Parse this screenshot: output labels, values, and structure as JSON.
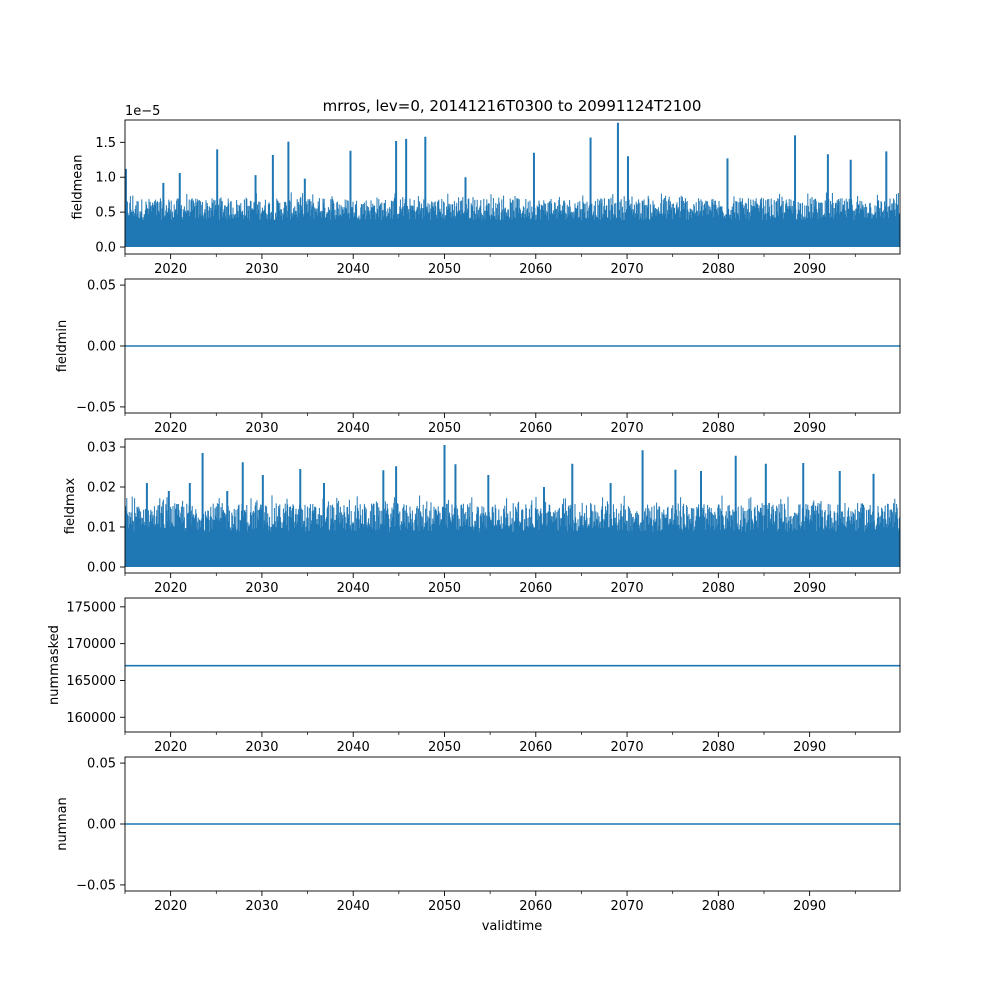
{
  "title": "mrros, lev=0, 20141216T0300 to 20991124T2100",
  "xlabel": "validtime",
  "colors": {
    "series": "#1f77b4",
    "axes": "#000000"
  },
  "chart_data": [
    {
      "type": "line",
      "ylabel": "fieldmean",
      "offset_label": "1e−5",
      "xlim": [
        2015,
        2099.9
      ],
      "ylim": [
        -0.1,
        1.82
      ],
      "x_ticks": [
        2020,
        2030,
        2040,
        2050,
        2060,
        2070,
        2080,
        2090
      ],
      "y_ticks": [
        0.0,
        0.5,
        1.0,
        1.5
      ],
      "y_tick_labels": [
        "0.0",
        "0.5",
        "1.0",
        "1.5"
      ],
      "series": [
        {
          "style": "dense-noise",
          "base_range": [
            0.0,
            0.7
          ],
          "spikes": [
            [
              2015.1,
              1.12
            ],
            [
              2019.2,
              0.92
            ],
            [
              2021.0,
              1.06
            ],
            [
              2025.1,
              1.4
            ],
            [
              2029.3,
              1.03
            ],
            [
              2031.2,
              1.32
            ],
            [
              2032.9,
              1.51
            ],
            [
              2034.7,
              0.98
            ],
            [
              2039.7,
              1.38
            ],
            [
              2044.7,
              1.52
            ],
            [
              2045.8,
              1.55
            ],
            [
              2047.9,
              1.58
            ],
            [
              2052.3,
              1.0
            ],
            [
              2059.8,
              1.35
            ],
            [
              2066.0,
              1.57
            ],
            [
              2069.0,
              1.78
            ],
            [
              2070.1,
              1.3
            ],
            [
              2081.0,
              1.27
            ],
            [
              2088.4,
              1.6
            ],
            [
              2092.0,
              1.33
            ],
            [
              2094.5,
              1.25
            ],
            [
              2098.4,
              1.37
            ]
          ]
        }
      ]
    },
    {
      "type": "line",
      "ylabel": "fieldmin",
      "xlim": [
        2015,
        2099.9
      ],
      "ylim": [
        -0.055,
        0.055
      ],
      "x_ticks": [
        2020,
        2030,
        2040,
        2050,
        2060,
        2070,
        2080,
        2090
      ],
      "y_ticks": [
        -0.05,
        0.0,
        0.05
      ],
      "y_tick_labels": [
        "−0.05",
        "0.00",
        "0.05"
      ],
      "series": [
        {
          "style": "constant",
          "value": 0.0
        }
      ]
    },
    {
      "type": "line",
      "ylabel": "fieldmax",
      "xlim": [
        2015,
        2099.9
      ],
      "ylim": [
        -0.0015,
        0.032
      ],
      "x_ticks": [
        2020,
        2030,
        2040,
        2050,
        2060,
        2070,
        2080,
        2090
      ],
      "y_ticks": [
        0.0,
        0.01,
        0.02,
        0.03
      ],
      "y_tick_labels": [
        "0.00",
        "0.01",
        "0.02",
        "0.03"
      ],
      "series": [
        {
          "style": "dense-noise",
          "base_range": [
            0.0,
            0.016
          ],
          "spikes": [
            [
              2017.4,
              0.021
            ],
            [
              2019.8,
              0.019
            ],
            [
              2022.1,
              0.021
            ],
            [
              2023.5,
              0.0285
            ],
            [
              2026.2,
              0.019
            ],
            [
              2027.9,
              0.0262
            ],
            [
              2030.1,
              0.023
            ],
            [
              2034.2,
              0.0245
            ],
            [
              2036.8,
              0.021
            ],
            [
              2043.3,
              0.0242
            ],
            [
              2044.7,
              0.0252
            ],
            [
              2050.0,
              0.0305
            ],
            [
              2051.2,
              0.0257
            ],
            [
              2054.8,
              0.023
            ],
            [
              2060.9,
              0.02
            ],
            [
              2064.0,
              0.0258
            ],
            [
              2068.2,
              0.021
            ],
            [
              2071.7,
              0.0292
            ],
            [
              2075.3,
              0.0243
            ],
            [
              2078.1,
              0.024
            ],
            [
              2081.9,
              0.0278
            ],
            [
              2085.2,
              0.0258
            ],
            [
              2089.3,
              0.026
            ],
            [
              2093.3,
              0.024
            ],
            [
              2097.0,
              0.0233
            ]
          ]
        }
      ]
    },
    {
      "type": "line",
      "ylabel": "nummasked",
      "xlim": [
        2015,
        2099.9
      ],
      "ylim": [
        158000,
        176200
      ],
      "x_ticks": [
        2020,
        2030,
        2040,
        2050,
        2060,
        2070,
        2080,
        2090
      ],
      "y_ticks": [
        160000,
        165000,
        170000,
        175000
      ],
      "y_tick_labels": [
        "160000",
        "165000",
        "170000",
        "175000"
      ],
      "series": [
        {
          "style": "constant",
          "value": 167000
        }
      ]
    },
    {
      "type": "line",
      "ylabel": "numnan",
      "xlim": [
        2015,
        2099.9
      ],
      "ylim": [
        -0.055,
        0.055
      ],
      "x_ticks": [
        2020,
        2030,
        2040,
        2050,
        2060,
        2070,
        2080,
        2090
      ],
      "y_ticks": [
        -0.05,
        0.0,
        0.05
      ],
      "y_tick_labels": [
        "−0.05",
        "0.00",
        "0.05"
      ],
      "series": [
        {
          "style": "constant",
          "value": 0.0
        }
      ]
    }
  ]
}
